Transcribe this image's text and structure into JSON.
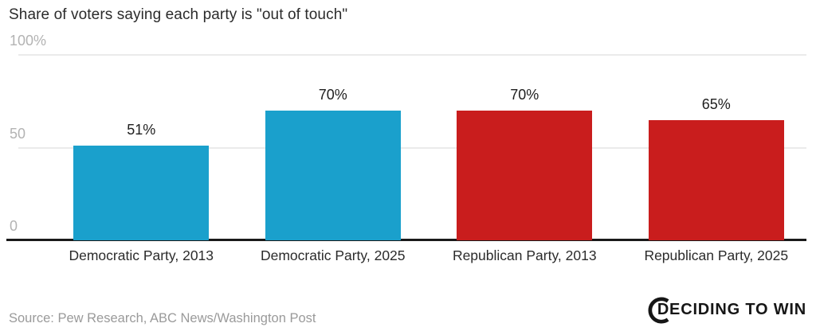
{
  "title": "Share of voters saying each party is \"out of touch\"",
  "source": "Source: Pew Research, ABC News/Washington Post",
  "logo": {
    "text": "DECIDING TO WIN",
    "mark": "c-ring-icon"
  },
  "colors": {
    "dem_blue": "#1aa0cc",
    "rep_red": "#c91d1d",
    "grid_gray": "#ebebeb",
    "axis_black": "#1a1a1a",
    "tick_gray": "#b3b3b3",
    "text_dark": "#2b2b2b",
    "source_gray": "#9a9a9a"
  },
  "chart_data": {
    "type": "bar",
    "title": "Share of voters saying each party is \"out of touch\"",
    "categories": [
      "Democratic Party, 2013",
      "Democratic Party, 2025",
      "Republican Party, 2013",
      "Republican Party, 2025"
    ],
    "values": [
      51,
      70,
      70,
      65
    ],
    "value_labels": [
      "51%",
      "70%",
      "70%",
      "65%"
    ],
    "bar_colors": [
      "#1aa0cc",
      "#1aa0cc",
      "#c91d1d",
      "#c91d1d"
    ],
    "xlabel": "",
    "ylabel": "",
    "ylim": [
      0,
      100
    ],
    "yticks": [
      {
        "value": 0,
        "label": "0"
      },
      {
        "value": 50,
        "label": "50"
      },
      {
        "value": 100,
        "label": "100%"
      }
    ],
    "grid": true,
    "legend_position": "none"
  }
}
